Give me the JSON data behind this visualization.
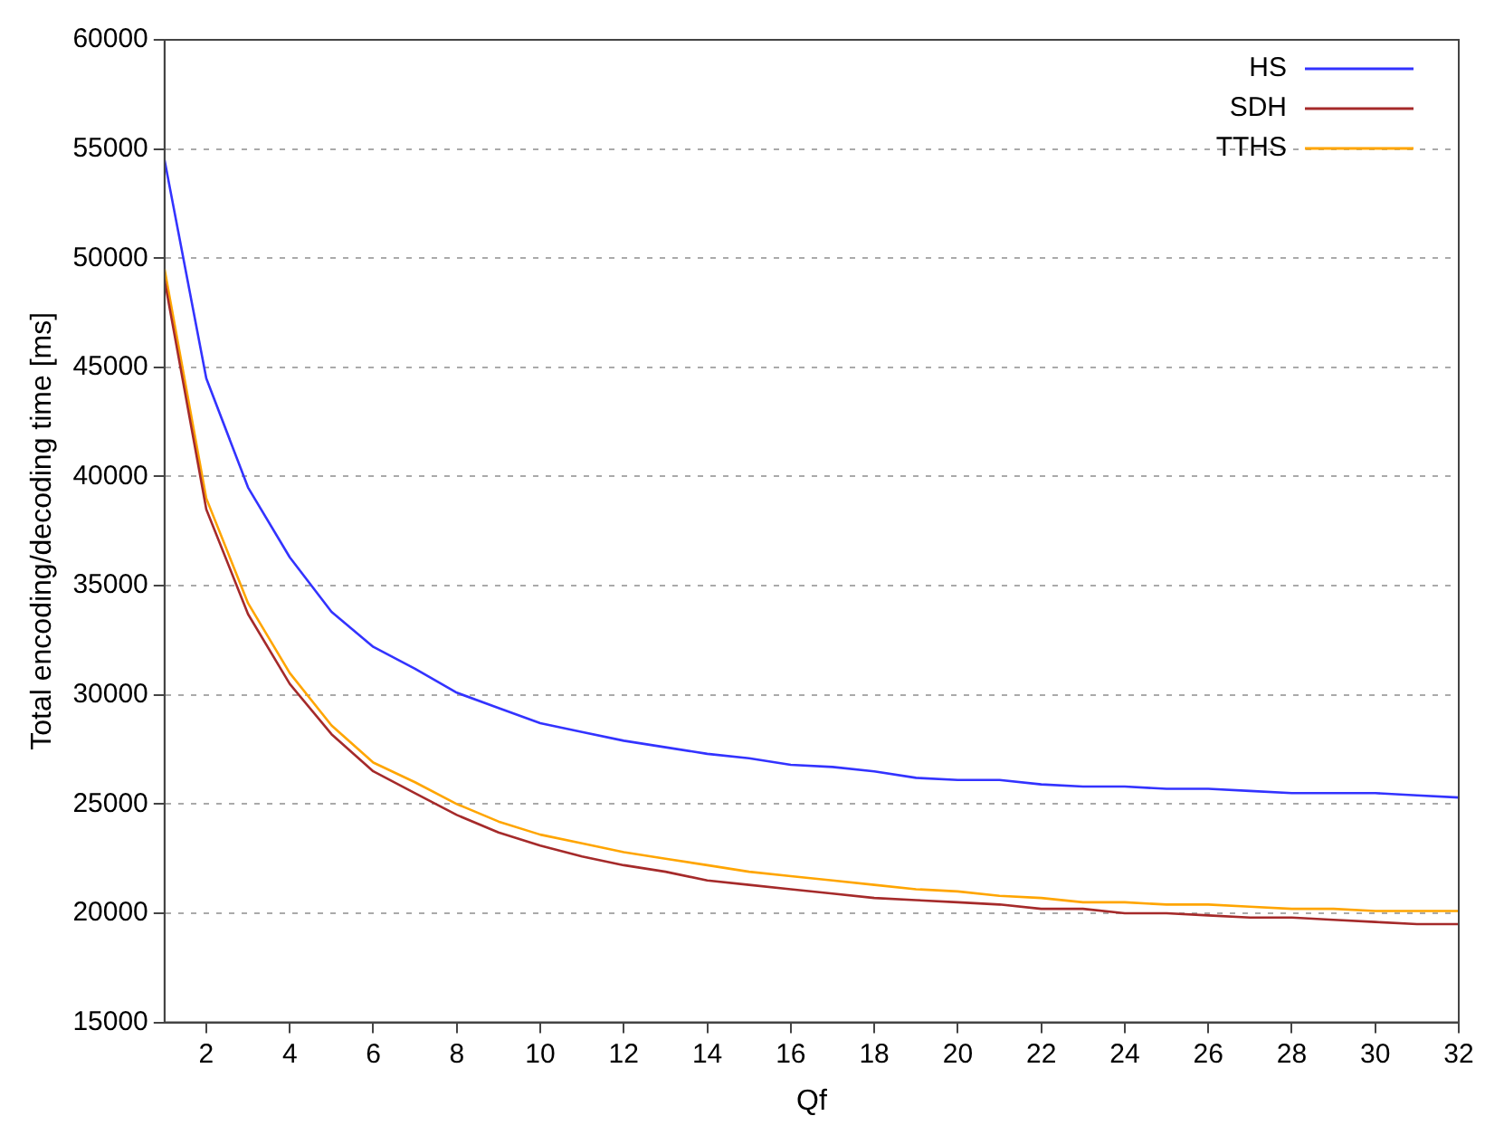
{
  "chart_data": {
    "type": "line",
    "xlabel": "Qf",
    "ylabel": "Total encoding/decoding time [ms]",
    "x": [
      1,
      2,
      3,
      4,
      5,
      6,
      7,
      8,
      9,
      10,
      11,
      12,
      13,
      14,
      15,
      16,
      17,
      18,
      19,
      20,
      21,
      22,
      23,
      24,
      25,
      26,
      27,
      28,
      29,
      30,
      31,
      32
    ],
    "series": [
      {
        "name": "HS",
        "color": "#3333ff",
        "values": [
          54500,
          44500,
          39500,
          36300,
          33800,
          32200,
          31200,
          30100,
          29400,
          28700,
          28300,
          27900,
          27600,
          27300,
          27100,
          26800,
          26700,
          26500,
          26200,
          26100,
          26100,
          25900,
          25800,
          25800,
          25700,
          25700,
          25600,
          25500,
          25500,
          25500,
          25400,
          25300
        ]
      },
      {
        "name": "SDH",
        "color": "#a52a2a",
        "values": [
          49000,
          38500,
          33700,
          30500,
          28200,
          26500,
          25500,
          24500,
          23700,
          23100,
          22600,
          22200,
          21900,
          21500,
          21300,
          21100,
          20900,
          20700,
          20600,
          20500,
          20400,
          20200,
          20200,
          20000,
          20000,
          19900,
          19800,
          19800,
          19700,
          19600,
          19500,
          19500
        ]
      },
      {
        "name": "TTHS",
        "color": "#ffa500",
        "values": [
          49500,
          39000,
          34200,
          31000,
          28600,
          26900,
          26000,
          25000,
          24200,
          23600,
          23200,
          22800,
          22500,
          22200,
          21900,
          21700,
          21500,
          21300,
          21100,
          21000,
          20800,
          20700,
          20500,
          20500,
          20400,
          20400,
          20300,
          20200,
          20200,
          20100,
          20100,
          20100
        ]
      }
    ],
    "xlim": [
      1,
      32
    ],
    "xticks": [
      2,
      4,
      6,
      8,
      10,
      12,
      14,
      16,
      18,
      20,
      22,
      24,
      26,
      28,
      30,
      32
    ],
    "ylim": [
      15000,
      60000
    ],
    "yticks": [
      15000,
      20000,
      25000,
      30000,
      35000,
      40000,
      45000,
      50000,
      55000,
      60000
    ],
    "grid": "y",
    "legend": "top right",
    "marker": "none",
    "line_style": "solid"
  }
}
